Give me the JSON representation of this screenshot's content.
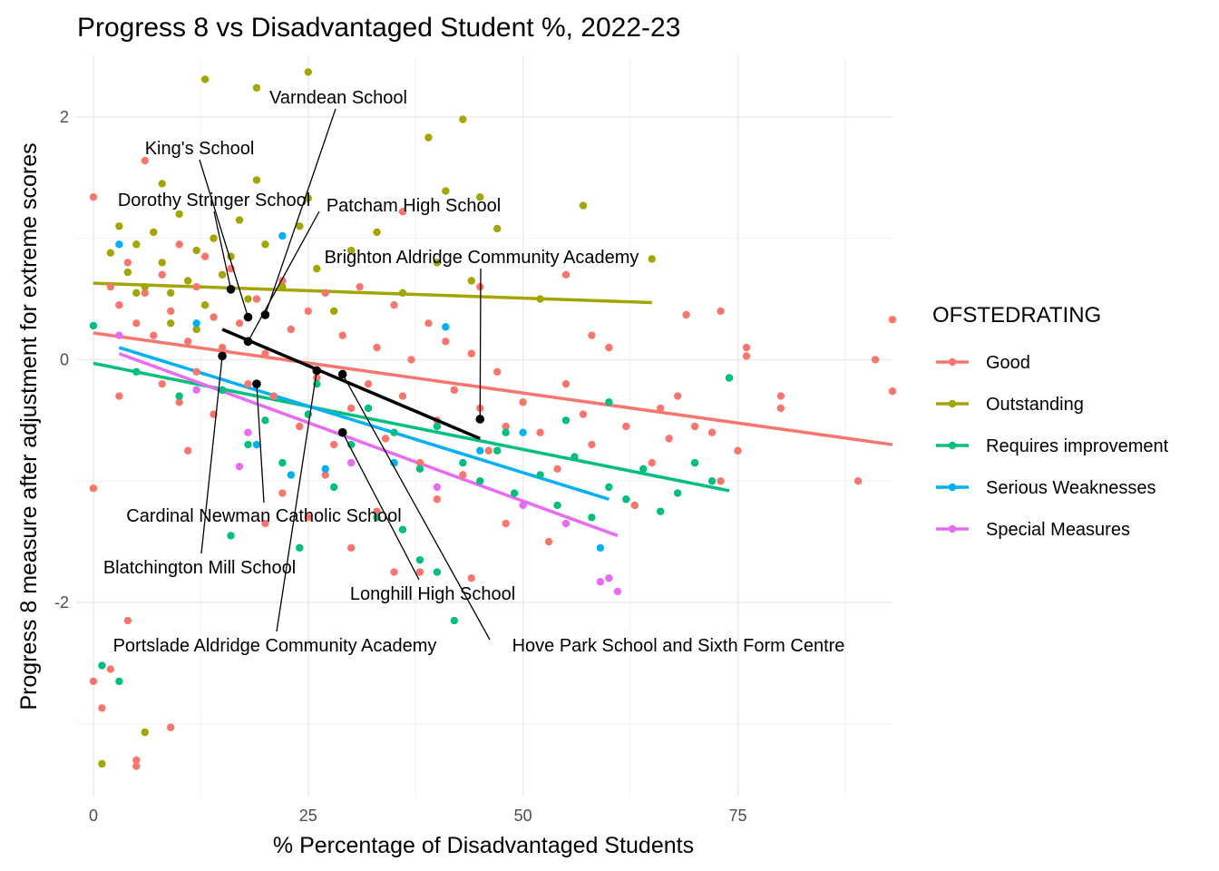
{
  "chart_data": {
    "type": "scatter",
    "title": "Progress 8 vs Disadvantaged Student %, 2022-23",
    "xlabel": "% Percentage of Disadvantaged Students",
    "ylabel": "Progress 8 measure after adjustment for extreme scores",
    "xlim": [
      -2,
      93
    ],
    "ylim": [
      -3.6,
      2.5
    ],
    "x_ticks": [
      0,
      25,
      50,
      75
    ],
    "y_ticks": [
      -2,
      0,
      2
    ],
    "grid": true,
    "legend": {
      "title": "OFSTEDRATING",
      "position": "right",
      "entries": [
        {
          "label": "Good",
          "color": "#F8766D"
        },
        {
          "label": "Outstanding",
          "color": "#A3A500"
        },
        {
          "label": "Requires improvement",
          "color": "#00BF7D"
        },
        {
          "label": "Serious Weaknesses",
          "color": "#00B0F6"
        },
        {
          "label": "Special Measures",
          "color": "#E76BF3"
        }
      ]
    },
    "series": [
      {
        "name": "Good",
        "color": "#F8766D",
        "trend": {
          "x": [
            0,
            93
          ],
          "y": [
            0.22,
            -0.7
          ]
        },
        "points": [
          [
            0,
            1.34
          ],
          [
            6,
            1.64
          ],
          [
            0,
            -1.06
          ],
          [
            0,
            -2.65
          ],
          [
            1,
            -2.87
          ],
          [
            2,
            -2.55
          ],
          [
            4,
            -2.15
          ],
          [
            5,
            -3.3
          ],
          [
            5,
            -3.35
          ],
          [
            9,
            -3.03
          ],
          [
            2,
            0.6
          ],
          [
            3,
            0.45
          ],
          [
            4,
            0.8
          ],
          [
            5,
            0.3
          ],
          [
            6,
            0.55
          ],
          [
            7,
            0.2
          ],
          [
            8,
            0.7
          ],
          [
            9,
            0.4
          ],
          [
            10,
            0.95
          ],
          [
            11,
            0.15
          ],
          [
            12,
            0.6
          ],
          [
            13,
            0.85
          ],
          [
            14,
            0.35
          ],
          [
            15,
            0.1
          ],
          [
            8,
            -0.2
          ],
          [
            10,
            -0.35
          ],
          [
            12,
            -0.1
          ],
          [
            14,
            -0.45
          ],
          [
            16,
            0.75
          ],
          [
            17,
            0.3
          ],
          [
            18,
            -0.2
          ],
          [
            19,
            0.5
          ],
          [
            20,
            0.05
          ],
          [
            21,
            -0.3
          ],
          [
            22,
            0.65
          ],
          [
            23,
            0.25
          ],
          [
            24,
            -0.55
          ],
          [
            25,
            0.4
          ],
          [
            26,
            -0.15
          ],
          [
            27,
            0.55
          ],
          [
            28,
            -0.7
          ],
          [
            29,
            0.2
          ],
          [
            30,
            -0.4
          ],
          [
            31,
            0.6
          ],
          [
            32,
            -0.2
          ],
          [
            33,
            0.1
          ],
          [
            34,
            -0.65
          ],
          [
            35,
            0.45
          ],
          [
            36,
            -0.3
          ],
          [
            37,
            0.0
          ],
          [
            38,
            -0.85
          ],
          [
            39,
            0.3
          ],
          [
            40,
            -0.5
          ],
          [
            41,
            0.15
          ],
          [
            42,
            -0.25
          ],
          [
            43,
            -0.95
          ],
          [
            44,
            0.05
          ],
          [
            45,
            -0.4
          ],
          [
            46,
            -0.75
          ],
          [
            47,
            -0.1
          ],
          [
            48,
            -0.55
          ],
          [
            50,
            -0.35
          ],
          [
            52,
            -0.6
          ],
          [
            54,
            -0.9
          ],
          [
            55,
            -0.2
          ],
          [
            57,
            -0.45
          ],
          [
            58,
            -0.7
          ],
          [
            60,
            0.1
          ],
          [
            62,
            -0.55
          ],
          [
            63,
            -1.2
          ],
          [
            65,
            -0.85
          ],
          [
            66,
            -0.4
          ],
          [
            67,
            -0.65
          ],
          [
            68,
            -0.3
          ],
          [
            70,
            -0.55
          ],
          [
            72,
            -0.6
          ],
          [
            73,
            -1.0
          ],
          [
            75,
            -0.75
          ],
          [
            69,
            0.37
          ],
          [
            73,
            0.4
          ],
          [
            76,
            0.1
          ],
          [
            76,
            0.03
          ],
          [
            80,
            -0.3
          ],
          [
            80,
            -0.4
          ],
          [
            89,
            -1.0
          ],
          [
            91,
            0.0
          ],
          [
            93,
            0.33
          ],
          [
            93,
            -0.26
          ],
          [
            20,
            -1.35
          ],
          [
            25,
            -1.3
          ],
          [
            30,
            -1.55
          ],
          [
            35,
            -1.75
          ],
          [
            38,
            -1.75
          ],
          [
            44,
            -1.8
          ],
          [
            48,
            -1.35
          ],
          [
            53,
            -1.5
          ],
          [
            11,
            -0.75
          ],
          [
            22,
            -1.1
          ],
          [
            27,
            -0.95
          ],
          [
            33,
            -1.25
          ],
          [
            40,
            -1.15
          ],
          [
            3,
            -0.3
          ],
          [
            45,
            0.6
          ],
          [
            36,
            1.22
          ],
          [
            55,
            0.7
          ],
          [
            58,
            0.2
          ]
        ]
      },
      {
        "name": "Outstanding",
        "color": "#A3A500",
        "trend": {
          "x": [
            0,
            65
          ],
          "y": [
            0.63,
            0.47
          ]
        },
        "points": [
          [
            13,
            2.31
          ],
          [
            19,
            2.24
          ],
          [
            25,
            2.37
          ],
          [
            43,
            1.98
          ],
          [
            39,
            1.83
          ],
          [
            1,
            -3.33
          ],
          [
            6,
            -3.07
          ],
          [
            8,
            1.45
          ],
          [
            19,
            1.48
          ],
          [
            25,
            1.33
          ],
          [
            41,
            1.39
          ],
          [
            45,
            1.34
          ],
          [
            2,
            0.88
          ],
          [
            3,
            1.1
          ],
          [
            4,
            0.72
          ],
          [
            5,
            0.95
          ],
          [
            6,
            0.6
          ],
          [
            7,
            1.05
          ],
          [
            8,
            0.8
          ],
          [
            9,
            0.55
          ],
          [
            10,
            1.2
          ],
          [
            11,
            0.65
          ],
          [
            12,
            0.9
          ],
          [
            13,
            0.45
          ],
          [
            14,
            1.0
          ],
          [
            15,
            0.7
          ],
          [
            16,
            0.85
          ],
          [
            17,
            1.15
          ],
          [
            18,
            0.5
          ],
          [
            20,
            0.95
          ],
          [
            22,
            0.6
          ],
          [
            24,
            1.1
          ],
          [
            26,
            0.75
          ],
          [
            28,
            0.4
          ],
          [
            30,
            0.9
          ],
          [
            33,
            1.05
          ],
          [
            36,
            0.55
          ],
          [
            40,
            0.8
          ],
          [
            44,
            0.65
          ],
          [
            47,
            1.08
          ],
          [
            52,
            0.5
          ],
          [
            57,
            1.27
          ],
          [
            65,
            0.83
          ],
          [
            5,
            0.55
          ],
          [
            9,
            0.3
          ],
          [
            12,
            0.25
          ]
        ]
      },
      {
        "name": "Requires improvement",
        "color": "#00BF7D",
        "trend": {
          "x": [
            0,
            74
          ],
          "y": [
            -0.03,
            -1.08
          ]
        },
        "points": [
          [
            0,
            0.28
          ],
          [
            1,
            -2.52
          ],
          [
            3,
            -2.65
          ],
          [
            16,
            -1.45
          ],
          [
            24,
            -1.55
          ],
          [
            38,
            -1.65
          ],
          [
            40,
            -1.75
          ],
          [
            42,
            -2.15
          ],
          [
            74,
            -0.15
          ],
          [
            5,
            -0.1
          ],
          [
            10,
            -0.3
          ],
          [
            15,
            -0.25
          ],
          [
            20,
            -0.5
          ],
          [
            25,
            -0.45
          ],
          [
            30,
            -0.7
          ],
          [
            35,
            -0.6
          ],
          [
            38,
            -0.9
          ],
          [
            40,
            -0.55
          ],
          [
            43,
            -0.85
          ],
          [
            45,
            -1.0
          ],
          [
            47,
            -0.75
          ],
          [
            49,
            -1.1
          ],
          [
            52,
            -0.95
          ],
          [
            54,
            -1.2
          ],
          [
            56,
            -0.8
          ],
          [
            58,
            -1.3
          ],
          [
            60,
            -1.05
          ],
          [
            62,
            -1.15
          ],
          [
            64,
            -0.9
          ],
          [
            66,
            -1.25
          ],
          [
            68,
            -1.1
          ],
          [
            70,
            -0.85
          ],
          [
            72,
            -1.0
          ],
          [
            22,
            -0.85
          ],
          [
            28,
            -1.05
          ],
          [
            33,
            -1.3
          ],
          [
            36,
            -1.4
          ],
          [
            26,
            -0.2
          ],
          [
            32,
            -0.4
          ],
          [
            48,
            -0.6
          ],
          [
            55,
            -0.5
          ],
          [
            60,
            -0.35
          ],
          [
            18,
            -0.7
          ]
        ]
      },
      {
        "name": "Serious Weaknesses",
        "color": "#00B0F6",
        "trend": {
          "x": [
            3,
            60
          ],
          "y": [
            0.1,
            -1.15
          ]
        },
        "points": [
          [
            3,
            0.95
          ],
          [
            22,
            1.02
          ],
          [
            41,
            0.27
          ],
          [
            59,
            -1.55
          ],
          [
            27,
            -0.9
          ],
          [
            23,
            -0.95
          ],
          [
            19,
            -0.7
          ],
          [
            35,
            -0.85
          ],
          [
            45,
            -0.75
          ],
          [
            50,
            -0.6
          ],
          [
            12,
            0.3
          ]
        ]
      },
      {
        "name": "Special Measures",
        "color": "#E76BF3",
        "trend": {
          "x": [
            3,
            61
          ],
          "y": [
            0.05,
            -1.45
          ]
        },
        "points": [
          [
            3,
            0.2
          ],
          [
            17,
            -0.88
          ],
          [
            18,
            -0.6
          ],
          [
            59,
            -1.83
          ],
          [
            60,
            -1.8
          ],
          [
            61,
            -1.91
          ],
          [
            12,
            -0.25
          ],
          [
            30,
            -0.85
          ],
          [
            40,
            -1.05
          ],
          [
            50,
            -1.2
          ],
          [
            55,
            -1.35
          ]
        ]
      }
    ],
    "highlight": {
      "color": "#000000",
      "trend": {
        "x": [
          15,
          45
        ],
        "y": [
          0.25,
          -0.65
        ]
      },
      "points": [
        {
          "label": "Varndean School",
          "x": 20,
          "y": 0.37
        },
        {
          "label": "King's School",
          "x": 18,
          "y": 0.35
        },
        {
          "label": "Dorothy Stringer School",
          "x": 16,
          "y": 0.58
        },
        {
          "label": "Patcham High School",
          "x": 18,
          "y": 0.15
        },
        {
          "label": "Brighton Aldridge Community Academy",
          "x": 45,
          "y": -0.49
        },
        {
          "label": "Cardinal Newman Catholic School",
          "x": 19,
          "y": -0.2
        },
        {
          "label": "Blatchington Mill School",
          "x": 15,
          "y": 0.03
        },
        {
          "label": "Longhill High School",
          "x": 29,
          "y": -0.6
        },
        {
          "label": "Portslade Aldridge Community Academy",
          "x": 26,
          "y": -0.09
        },
        {
          "label": "Hove Park School and Sixth Form Centre",
          "x": 29,
          "y": -0.12
        }
      ]
    }
  }
}
